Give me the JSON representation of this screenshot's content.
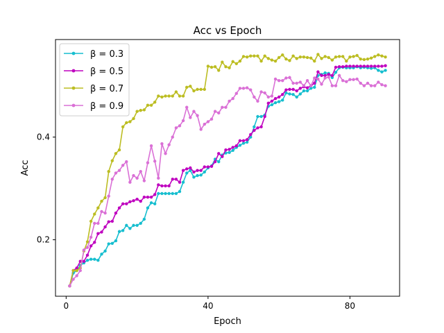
{
  "chart_data": {
    "type": "line",
    "title": "Acc vs Epoch",
    "xlabel": "Epoch",
    "ylabel": "Acc",
    "xlim": [
      -3,
      94
    ],
    "ylim": [
      0.09,
      0.59
    ],
    "xticks": [
      0,
      40,
      80
    ],
    "yticks": [
      0.2,
      0.4
    ],
    "grid": false,
    "legend_position": "top-left",
    "x": [
      1,
      2,
      3,
      4,
      5,
      6,
      7,
      8,
      9,
      10,
      11,
      12,
      13,
      14,
      15,
      16,
      17,
      18,
      19,
      20,
      21,
      22,
      23,
      24,
      25,
      26,
      27,
      28,
      29,
      30,
      31,
      32,
      33,
      34,
      35,
      36,
      37,
      38,
      39,
      40,
      41,
      42,
      43,
      44,
      45,
      46,
      47,
      48,
      49,
      50,
      51,
      52,
      53,
      54,
      55,
      56,
      57,
      58,
      59,
      60,
      61,
      62,
      63,
      64,
      65,
      66,
      67,
      68,
      69,
      70,
      71,
      72,
      73,
      74,
      75,
      76,
      77,
      78,
      79,
      80,
      81,
      82,
      83,
      84,
      85,
      86,
      87,
      88,
      89,
      90
    ],
    "series": [
      {
        "name": "β = 0.3",
        "legend_label": "β = 0.3",
        "color": "#17becf",
        "values": [
          0.11,
          0.135,
          0.14,
          0.15,
          0.155,
          0.16,
          0.162,
          0.162,
          0.16,
          0.172,
          0.178,
          0.192,
          0.193,
          0.198,
          0.216,
          0.218,
          0.228,
          0.222,
          0.228,
          0.228,
          0.232,
          0.24,
          0.262,
          0.272,
          0.27,
          0.29,
          0.29,
          0.29,
          0.29,
          0.29,
          0.29,
          0.294,
          0.312,
          0.33,
          0.335,
          0.322,
          0.325,
          0.326,
          0.332,
          0.34,
          0.344,
          0.357,
          0.352,
          0.365,
          0.369,
          0.37,
          0.374,
          0.38,
          0.384,
          0.388,
          0.39,
          0.4,
          0.42,
          0.44,
          0.44,
          0.443,
          0.46,
          0.463,
          0.467,
          0.469,
          0.472,
          0.486,
          0.484,
          0.483,
          0.478,
          0.484,
          0.49,
          0.49,
          0.495,
          0.497,
          0.52,
          0.522,
          0.525,
          0.524,
          0.516,
          0.526,
          0.535,
          0.536,
          0.535,
          0.535,
          0.535,
          0.537,
          0.535,
          0.536,
          0.535,
          0.534,
          0.535,
          0.53,
          0.527,
          0.53
        ]
      },
      {
        "name": "β = 0.5",
        "legend_label": "β = 0.5",
        "color": "#bf00bf",
        "values": [
          0.11,
          0.14,
          0.145,
          0.158,
          0.158,
          0.17,
          0.188,
          0.195,
          0.212,
          0.215,
          0.225,
          0.235,
          0.236,
          0.252,
          0.262,
          0.27,
          0.27,
          0.274,
          0.276,
          0.279,
          0.275,
          0.283,
          0.283,
          0.283,
          0.288,
          0.307,
          0.305,
          0.305,
          0.305,
          0.318,
          0.318,
          0.312,
          0.335,
          0.338,
          0.34,
          0.332,
          0.335,
          0.335,
          0.342,
          0.342,
          0.343,
          0.352,
          0.368,
          0.362,
          0.375,
          0.376,
          0.38,
          0.383,
          0.393,
          0.393,
          0.395,
          0.405,
          0.413,
          0.418,
          0.42,
          0.44,
          0.466,
          0.47,
          0.475,
          0.478,
          0.483,
          0.492,
          0.493,
          0.493,
          0.49,
          0.495,
          0.498,
          0.496,
          0.5,
          0.505,
          0.527,
          0.52,
          0.52,
          0.522,
          0.52,
          0.536,
          0.537,
          0.537,
          0.538,
          0.538,
          0.538,
          0.538,
          0.538,
          0.538,
          0.538,
          0.538,
          0.538,
          0.538,
          0.538,
          0.539
        ]
      },
      {
        "name": "β = 0.7",
        "legend_label": "β = 0.7",
        "color": "#bcbd22",
        "values": [
          0.11,
          0.14,
          0.14,
          0.145,
          0.178,
          0.196,
          0.236,
          0.25,
          0.262,
          0.275,
          0.282,
          0.333,
          0.354,
          0.368,
          0.375,
          0.42,
          0.428,
          0.43,
          0.436,
          0.45,
          0.452,
          0.453,
          0.462,
          0.462,
          0.468,
          0.48,
          0.478,
          0.48,
          0.48,
          0.48,
          0.488,
          0.48,
          0.48,
          0.497,
          0.499,
          0.49,
          0.493,
          0.493,
          0.493,
          0.538,
          0.536,
          0.537,
          0.53,
          0.546,
          0.537,
          0.535,
          0.547,
          0.543,
          0.548,
          0.557,
          0.556,
          0.558,
          0.558,
          0.558,
          0.548,
          0.558,
          0.553,
          0.55,
          0.548,
          0.555,
          0.56,
          0.552,
          0.549,
          0.558,
          0.553,
          0.556,
          0.556,
          0.555,
          0.554,
          0.548,
          0.561,
          0.553,
          0.557,
          0.555,
          0.55,
          0.556,
          0.557,
          0.557,
          0.548,
          0.556,
          0.557,
          0.559,
          0.552,
          0.551,
          0.552,
          0.554,
          0.557,
          0.56,
          0.558,
          0.556
        ]
      },
      {
        "name": "β = 0.9",
        "legend_label": "β = 0.9",
        "color": "#da70d6",
        "values": [
          0.11,
          0.123,
          0.13,
          0.14,
          0.18,
          0.185,
          0.205,
          0.232,
          0.232,
          0.255,
          0.252,
          0.285,
          0.318,
          0.33,
          0.335,
          0.345,
          0.352,
          0.312,
          0.325,
          0.32,
          0.333,
          0.315,
          0.35,
          0.383,
          0.353,
          0.32,
          0.387,
          0.368,
          0.385,
          0.4,
          0.418,
          0.422,
          0.432,
          0.458,
          0.438,
          0.45,
          0.442,
          0.415,
          0.425,
          0.43,
          0.435,
          0.45,
          0.447,
          0.458,
          0.458,
          0.47,
          0.475,
          0.485,
          0.495,
          0.495,
          0.496,
          0.492,
          0.478,
          0.47,
          0.488,
          0.486,
          0.478,
          0.48,
          0.513,
          0.51,
          0.51,
          0.515,
          0.516,
          0.505,
          0.505,
          0.507,
          0.5,
          0.51,
          0.5,
          0.515,
          0.513,
          0.503,
          0.515,
          0.517,
          0.5,
          0.5,
          0.52,
          0.51,
          0.508,
          0.512,
          0.512,
          0.513,
          0.505,
          0.5,
          0.505,
          0.5,
          0.5,
          0.507,
          0.502,
          0.5
        ]
      }
    ]
  }
}
